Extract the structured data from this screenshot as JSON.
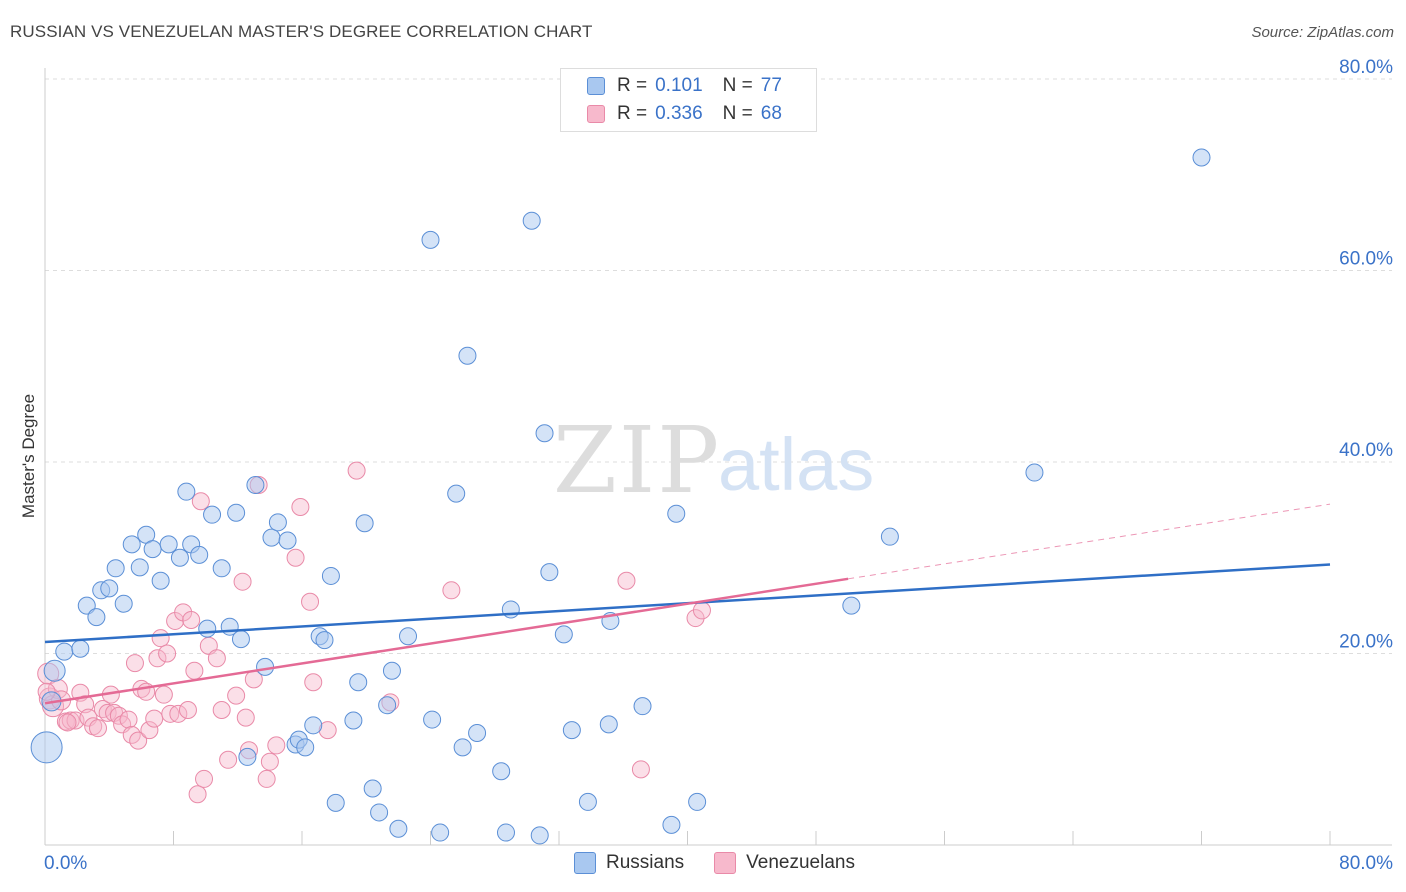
{
  "title": "RUSSIAN VS VENEZUELAN MASTER'S DEGREE CORRELATION CHART",
  "source": "Source: ZipAtlas.com",
  "watermark": {
    "zip": "ZIP",
    "atlas": "atlas"
  },
  "legend": {
    "rows": [
      {
        "r_label": "R =",
        "r_value": "0.101",
        "n_label": "N =",
        "n_value": "77"
      },
      {
        "r_label": "R =",
        "r_value": "0.336",
        "n_label": "N =",
        "n_value": "68"
      }
    ]
  },
  "bottom_legend": {
    "russians": "Russians",
    "venezuelans": "Venezuelans"
  },
  "colors": {
    "russians_fill": "#a9c8f0",
    "russians_stroke": "#5b8fd6",
    "russians_line": "#2f6fc6",
    "venezuelans_fill": "#f7b9cc",
    "venezuelans_stroke": "#e98aa8",
    "venezuelans_line": "#e46a95",
    "axis_text": "#3a72c8",
    "grid": "#dddddd"
  },
  "chart_data": {
    "type": "scatter",
    "title": "RUSSIAN VS VENEZUELAN MASTER'S DEGREE CORRELATION CHART",
    "xlabel": "",
    "ylabel": "Master's Degree",
    "xlim": [
      0,
      80
    ],
    "ylim": [
      0,
      80
    ],
    "x_tick_labels": [
      "0.0%",
      "80.0%"
    ],
    "y_ticks": [
      20,
      40,
      60,
      80
    ],
    "y_tick_labels": [
      "20.0%",
      "40.0%",
      "60.0%",
      "80.0%"
    ],
    "series": [
      {
        "name": "Russians",
        "r": 0.101,
        "n": 77,
        "trend": {
          "x0": 0,
          "y0": 21.2,
          "x1": 80,
          "y1": 29.3
        },
        "points": [
          [
            0.1,
            10.2,
            14
          ],
          [
            0.6,
            18.2,
            9
          ],
          [
            0.4,
            15.0,
            8
          ],
          [
            1.2,
            20.2,
            7
          ],
          [
            2.2,
            20.5,
            7
          ],
          [
            2.6,
            25.0,
            7
          ],
          [
            3.2,
            23.8,
            7
          ],
          [
            3.5,
            26.6,
            7
          ],
          [
            4.0,
            26.8,
            7
          ],
          [
            4.4,
            28.9,
            7
          ],
          [
            4.9,
            25.2,
            7
          ],
          [
            5.4,
            31.4,
            7
          ],
          [
            5.9,
            29.0,
            7
          ],
          [
            6.3,
            32.4,
            7
          ],
          [
            6.7,
            30.9,
            7
          ],
          [
            7.2,
            27.6,
            7
          ],
          [
            7.7,
            31.4,
            7
          ],
          [
            8.4,
            30.0,
            7
          ],
          [
            8.8,
            36.9,
            7
          ],
          [
            9.1,
            31.4,
            7
          ],
          [
            9.6,
            30.3,
            7
          ],
          [
            10.1,
            22.6,
            7
          ],
          [
            10.4,
            34.5,
            7
          ],
          [
            11.0,
            28.9,
            7
          ],
          [
            11.5,
            22.8,
            7
          ],
          [
            11.9,
            34.7,
            7
          ],
          [
            12.2,
            21.5,
            7
          ],
          [
            12.6,
            9.2,
            7
          ],
          [
            13.1,
            37.6,
            7
          ],
          [
            13.7,
            18.6,
            7
          ],
          [
            14.1,
            32.1,
            7
          ],
          [
            14.5,
            33.7,
            7
          ],
          [
            15.1,
            31.8,
            7
          ],
          [
            15.6,
            10.5,
            7
          ],
          [
            15.8,
            11.0,
            7
          ],
          [
            16.2,
            10.2,
            7
          ],
          [
            16.7,
            12.5,
            7
          ],
          [
            17.1,
            21.8,
            7
          ],
          [
            17.4,
            21.4,
            7
          ],
          [
            17.8,
            28.1,
            7
          ],
          [
            18.1,
            4.4,
            7
          ],
          [
            19.2,
            13.0,
            7
          ],
          [
            19.5,
            17.0,
            7
          ],
          [
            19.9,
            33.6,
            7
          ],
          [
            20.4,
            5.9,
            7
          ],
          [
            20.8,
            3.4,
            7
          ],
          [
            21.3,
            14.6,
            7
          ],
          [
            21.6,
            18.2,
            7
          ],
          [
            22.0,
            1.7,
            7
          ],
          [
            22.6,
            21.8,
            7
          ],
          [
            24.0,
            63.2,
            7
          ],
          [
            24.1,
            13.1,
            7
          ],
          [
            24.6,
            1.3,
            7
          ],
          [
            25.6,
            36.7,
            7
          ],
          [
            26.0,
            10.2,
            7
          ],
          [
            26.3,
            51.1,
            7
          ],
          [
            26.9,
            11.7,
            7
          ],
          [
            28.4,
            7.7,
            7
          ],
          [
            28.7,
            1.3,
            7
          ],
          [
            29.0,
            24.6,
            7
          ],
          [
            30.3,
            65.2,
            7
          ],
          [
            30.8,
            1.0,
            7
          ],
          [
            31.1,
            43.0,
            7
          ],
          [
            31.4,
            28.5,
            7
          ],
          [
            32.3,
            22.0,
            7
          ],
          [
            32.8,
            12.0,
            7
          ],
          [
            33.8,
            4.5,
            7
          ],
          [
            35.1,
            12.6,
            7
          ],
          [
            35.2,
            23.4,
            7
          ],
          [
            37.2,
            14.5,
            7
          ],
          [
            39.0,
            2.1,
            7
          ],
          [
            39.3,
            34.6,
            7
          ],
          [
            40.6,
            4.5,
            7
          ],
          [
            50.2,
            25.0,
            7
          ],
          [
            52.6,
            32.2,
            7
          ],
          [
            61.6,
            38.9,
            7
          ],
          [
            72.0,
            71.8,
            7
          ]
        ]
      },
      {
        "name": "Venezuelans",
        "r": 0.336,
        "n": 68,
        "trend": {
          "x0": 0,
          "y0": 14.8,
          "x1": 50,
          "y1": 27.8
        },
        "trend_dashed": {
          "x0": 50,
          "y0": 27.8,
          "x1": 80,
          "y1": 35.6
        },
        "points": [
          [
            0.2,
            17.9,
            9
          ],
          [
            0.3,
            15.3,
            9
          ],
          [
            0.5,
            14.5,
            9
          ],
          [
            0.8,
            16.3,
            8
          ],
          [
            1.0,
            15.1,
            8
          ],
          [
            1.3,
            12.9,
            7
          ],
          [
            1.6,
            13.0,
            7
          ],
          [
            1.9,
            13.0,
            7
          ],
          [
            2.2,
            15.9,
            7
          ],
          [
            2.5,
            14.7,
            7
          ],
          [
            2.7,
            13.3,
            7
          ],
          [
            3.0,
            12.4,
            7
          ],
          [
            3.3,
            12.2,
            7
          ],
          [
            3.6,
            14.2,
            7
          ],
          [
            3.9,
            13.8,
            7
          ],
          [
            4.1,
            15.7,
            7
          ],
          [
            4.3,
            13.8,
            7
          ],
          [
            4.6,
            13.5,
            7
          ],
          [
            4.8,
            12.6,
            7
          ],
          [
            5.2,
            13.1,
            7
          ],
          [
            5.4,
            11.5,
            7
          ],
          [
            5.6,
            19.0,
            7
          ],
          [
            5.8,
            10.9,
            7
          ],
          [
            6.0,
            16.3,
            7
          ],
          [
            6.3,
            16.0,
            7
          ],
          [
            6.5,
            12.0,
            7
          ],
          [
            6.8,
            13.2,
            7
          ],
          [
            7.0,
            19.5,
            7
          ],
          [
            7.2,
            21.6,
            7
          ],
          [
            7.4,
            15.7,
            7
          ],
          [
            7.6,
            20.0,
            7
          ],
          [
            7.8,
            13.7,
            7
          ],
          [
            8.1,
            23.4,
            7
          ],
          [
            8.3,
            13.7,
            7
          ],
          [
            8.6,
            24.3,
            7
          ],
          [
            8.9,
            14.1,
            7
          ],
          [
            9.1,
            23.5,
            7
          ],
          [
            9.3,
            18.2,
            7
          ],
          [
            9.5,
            5.3,
            7
          ],
          [
            9.7,
            35.9,
            7
          ],
          [
            9.9,
            6.9,
            7
          ],
          [
            10.2,
            20.8,
            7
          ],
          [
            10.7,
            19.5,
            7
          ],
          [
            11.0,
            14.1,
            7
          ],
          [
            11.4,
            8.9,
            7
          ],
          [
            11.9,
            15.6,
            7
          ],
          [
            12.3,
            27.5,
            7
          ],
          [
            12.5,
            13.3,
            7
          ],
          [
            12.7,
            9.9,
            7
          ],
          [
            13.0,
            17.3,
            7
          ],
          [
            13.3,
            37.6,
            7
          ],
          [
            13.8,
            6.9,
            7
          ],
          [
            14.0,
            8.7,
            7
          ],
          [
            14.4,
            10.4,
            7
          ],
          [
            15.6,
            30.0,
            7
          ],
          [
            15.9,
            35.3,
            7
          ],
          [
            16.5,
            25.4,
            7
          ],
          [
            16.7,
            17.0,
            7
          ],
          [
            17.6,
            12.0,
            7
          ],
          [
            19.4,
            39.1,
            7
          ],
          [
            21.5,
            14.9,
            7
          ],
          [
            25.3,
            26.6,
            7
          ],
          [
            36.2,
            27.6,
            7
          ],
          [
            37.1,
            7.9,
            7
          ],
          [
            40.5,
            23.7,
            7
          ],
          [
            40.9,
            24.5,
            7
          ],
          [
            0.1,
            16.0,
            7
          ],
          [
            1.4,
            12.8,
            7
          ]
        ]
      }
    ]
  }
}
